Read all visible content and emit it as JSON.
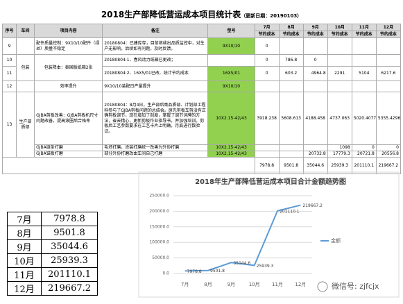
{
  "header": {
    "title": "2018生产部降低营运成本项目统计表",
    "update_date": "（更新日期：20190103）"
  },
  "table": {
    "columns": [
      "序号",
      "车间",
      "项目内容",
      "备注",
      "型号",
      "7月",
      "8月",
      "9月",
      "10月",
      "11月",
      "12月"
    ],
    "subheader": [
      "节约成本",
      "节约成本",
      "节约成本",
      "节约成本",
      "节约成本",
      "节约成本"
    ],
    "rows": [
      {
        "no": "9",
        "item": "配件质量控制：9X10/10配件（绿丝）质量不稳定",
        "note": "20180804：已建库存，目前继续出品质监控中，对生产无影响，后续如有问题，及时反馈。",
        "model": "9X10/10",
        "savings": [
          0
        ]
      },
      {
        "no": "10",
        "workshop": "包装",
        "item": "包装降本：泰国版纸箱2张",
        "note": "20180804:1、春风动力纸箱已更改；",
        "savings": [
          0,
          786.8,
          0
        ]
      },
      {
        "no": "11",
        "note": "20180804:2、16X5/01已改、统计节约成本",
        "model": "16X5/01",
        "savings": [
          0,
          603.2,
          4964.8,
          2291,
          5104,
          6217.6
        ]
      },
      {
        "no": "12",
        "item": "效率提升",
        "note": "9X10/10装配日产量提升",
        "model": "9X10/10"
      },
      {
        "no": "13",
        "workshop": "生产部质部",
        "item": "GJBA剪板改善：GJBA剪板机尺寸问题改善，提高滚圈后合格率",
        "note": "20180804：8月4日，生产部后臬品质部、计划部工程科参与了GJBA剪板问题的总结会。原先剪板车剪没有正确剪板调节，现在增加了刻度，掌握了调节词牌的方法，省去精心，更新剪板作业指导书，并加强培训。剪板后工艺参数要求在工艺卡片上明确，月底进行数验证。",
        "model": "10X2.15-42/43",
        "savings": [
          3918.238,
          5608.613,
          4188.458,
          4737.063,
          5020.4077,
          5355.4296
        ]
      },
      {
        "item": "GJBA链条打磨",
        "note": "毛坯打磨，涂装打磨统一改善为外协打磨",
        "model": "10X2.15-42/43",
        "savings": [
          null,
          null,
          null,
          1098,
          0,
          0
        ]
      },
      {
        "item": "GJBA锚板打磨",
        "note": "部分外协打磨改由车间自己打磨",
        "model": "10X2.15-42/43",
        "savings": [
          null,
          null,
          20732.8,
          17779.3,
          20721.8,
          20556.8
        ]
      }
    ],
    "totals": [
      7978.8,
      9501.8,
      35044.6,
      25939.3,
      201110.1,
      219667.2
    ]
  },
  "summary_table": {
    "rows": [
      [
        "7月",
        7978.8
      ],
      [
        "8月",
        9501.8
      ],
      [
        "9月",
        35044.6
      ],
      [
        "10月",
        25939.3
      ],
      [
        "11月",
        201110.1
      ],
      [
        "12月",
        219667.2
      ]
    ]
  },
  "chart_data": {
    "type": "line",
    "title": "2018年生产部降低营运成本项目合计金额趋势图",
    "categories": [
      "7月",
      "8月",
      "9月",
      "10月",
      "11月",
      "12月"
    ],
    "series": [
      {
        "name": "金额",
        "color": "#5b9bd5",
        "values": [
          7978.8,
          9501.8,
          35044.6,
          25939.3,
          201110.1,
          219667.2
        ]
      }
    ],
    "ylim": [
      0,
      250000
    ],
    "yticks": [
      {
        "value": 0,
        "label": "0.0"
      },
      {
        "value": 50000,
        "label": "50000.0"
      },
      {
        "value": 100000,
        "label": "100000.0"
      },
      {
        "value": 150000,
        "label": "150000.0"
      },
      {
        "value": 200000,
        "label": "200000.0"
      },
      {
        "value": 250000,
        "label": "250000.0"
      }
    ],
    "grid": true,
    "legend": "right"
  },
  "watermark": "微信号: zjfcjx"
}
